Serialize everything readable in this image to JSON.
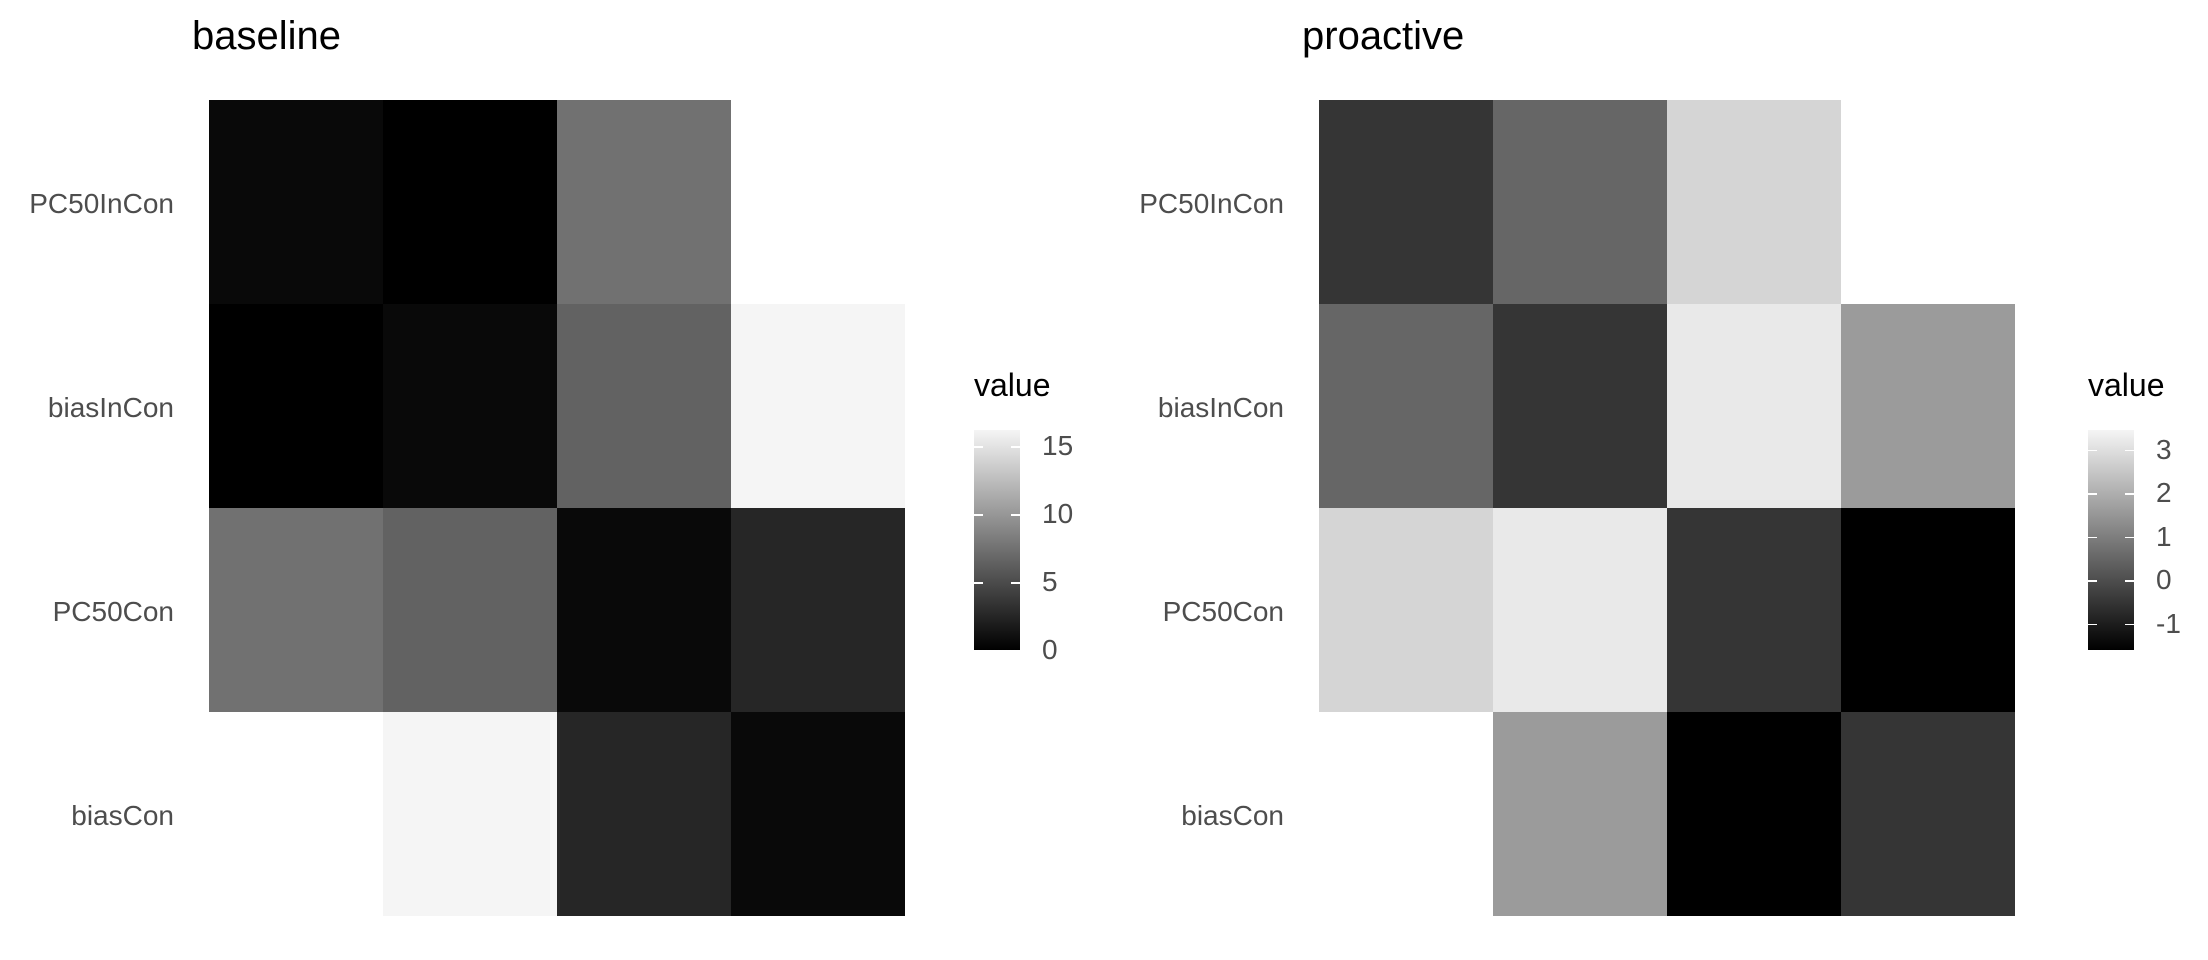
{
  "chart_data": [
    {
      "type": "heatmap",
      "title": "baseline",
      "xlabel": "",
      "ylabel": "",
      "rows": [
        "PC50InCon",
        "biasInCon",
        "PC50Con",
        "biasCon"
      ],
      "values": [
        [
          0.6,
          0.0,
          7.5,
          null
        ],
        [
          0.0,
          0.6,
          6.5,
          16.2
        ],
        [
          7.5,
          6.5,
          0.6,
          2.5
        ],
        [
          null,
          16.2,
          2.5,
          0.6
        ]
      ],
      "legend": {
        "title": "value",
        "min": 0,
        "max": 16.2,
        "ticks": [
          0,
          5,
          10,
          15
        ],
        "labels": [
          "0",
          "5",
          "10",
          "15"
        ]
      },
      "colors": {
        "low": "#000000",
        "high": "#f5f5f5"
      }
    },
    {
      "type": "heatmap",
      "title": "proactive",
      "xlabel": "",
      "ylabel": "",
      "rows": [
        "PC50InCon",
        "biasInCon",
        "PC50Con",
        "biasCon"
      ],
      "values": [
        [
          -0.5,
          0.5,
          2.8,
          null
        ],
        [
          0.5,
          -0.5,
          3.2,
          1.6
        ],
        [
          2.8,
          3.2,
          -0.5,
          -1.6
        ],
        [
          null,
          1.6,
          -1.6,
          -0.5
        ]
      ],
      "legend": {
        "title": "value",
        "min": -1.6,
        "max": 3.45,
        "ticks": [
          -1,
          0,
          1,
          2,
          3
        ],
        "labels": [
          "-1",
          "0",
          "1",
          "2",
          "3"
        ]
      },
      "colors": {
        "low": "#000000",
        "high": "#f5f5f5"
      }
    }
  ]
}
